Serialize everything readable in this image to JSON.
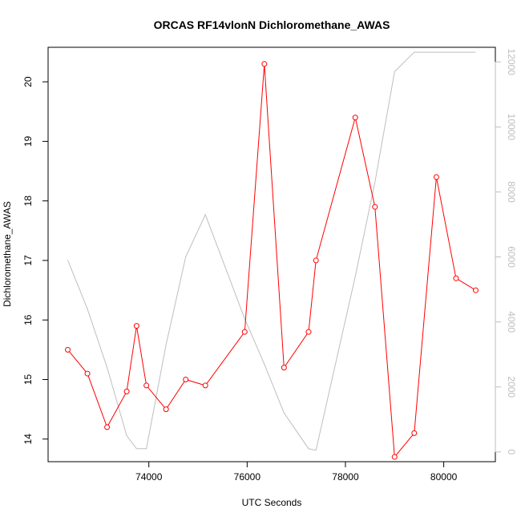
{
  "chart_data": {
    "type": "line",
    "title": "ORCAS RF14vlonN Dichloromethane_AWAS",
    "xlabel": "UTC Seconds",
    "ylabel": "Dichloromethane_AWAS",
    "xlim": [
      71950,
      81050
    ],
    "ylim": [
      13.62,
      20.58
    ],
    "x_ticks": [
      74000,
      76000,
      78000,
      80000
    ],
    "y_ticks": [
      14,
      15,
      16,
      17,
      18,
      19,
      20
    ],
    "y2lim": [
      -300,
      12450
    ],
    "y2_ticks": [
      0,
      2000,
      4000,
      6000,
      8000,
      10000,
      12000
    ],
    "colors": {
      "primary": "#ff0000",
      "secondary": "#bebebe"
    },
    "series": [
      {
        "axis": "left",
        "x": [
          72350,
          72750,
          73150,
          73550,
          73750,
          73950,
          74350,
          74750,
          75150,
          75950,
          76350,
          76750,
          77250,
          77400,
          78200,
          78600,
          79000,
          79400,
          79850,
          80250,
          80650
        ],
        "values": [
          15.5,
          15.1,
          14.2,
          14.8,
          15.9,
          14.9,
          14.5,
          15.0,
          14.9,
          15.8,
          20.3,
          15.2,
          15.8,
          17.0,
          19.4,
          17.9,
          13.7,
          14.1,
          18.4,
          16.7,
          16.5
        ]
      },
      {
        "axis": "right",
        "x": [
          72350,
          72750,
          73150,
          73550,
          73750,
          73950,
          74350,
          74750,
          75150,
          75950,
          76350,
          76750,
          77250,
          77400,
          78200,
          78600,
          79000,
          79400,
          79850,
          80250,
          80650
        ],
        "values": [
          5900,
          4400,
          2600,
          500,
          100,
          100,
          3300,
          6000,
          7300,
          4100,
          2700,
          1200,
          100,
          50,
          5400,
          8300,
          11700,
          12300,
          12300,
          12300,
          12300
        ]
      }
    ]
  }
}
